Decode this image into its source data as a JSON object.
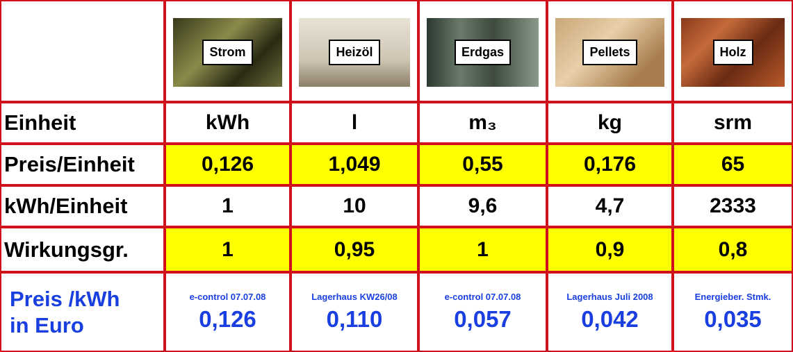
{
  "table": {
    "columns": [
      "Strom",
      "Heizöl",
      "Erdgas",
      "Pellets",
      "Holz"
    ],
    "rows": [
      {
        "label": "Einheit",
        "cells": [
          "kWh",
          "l",
          "m₃",
          "kg",
          "srm"
        ]
      },
      {
        "label": "Preis/Einheit",
        "cells": [
          "0,126",
          "1,049",
          "0,55",
          "0,176",
          "65"
        ]
      },
      {
        "label": "kWh/Einheit",
        "cells": [
          "1",
          "10",
          "9,6",
          "4,7",
          "2333"
        ]
      },
      {
        "label": "Wirkungsgr.",
        "cells": [
          "1",
          "0,95",
          "1",
          "0,9",
          "0,8"
        ]
      }
    ],
    "footer": {
      "label_lines": [
        "Preis /kWh",
        "in Euro"
      ],
      "sources": [
        "e-control 07.07.08",
        "Lagerhaus KW26/08",
        "e-control 07.07.08",
        "Lagerhaus Juli 2008",
        "Energieber. Stmk."
      ],
      "values": [
        "0,126",
        "0,110",
        "0,057",
        "0,042",
        "0,035"
      ]
    }
  }
}
